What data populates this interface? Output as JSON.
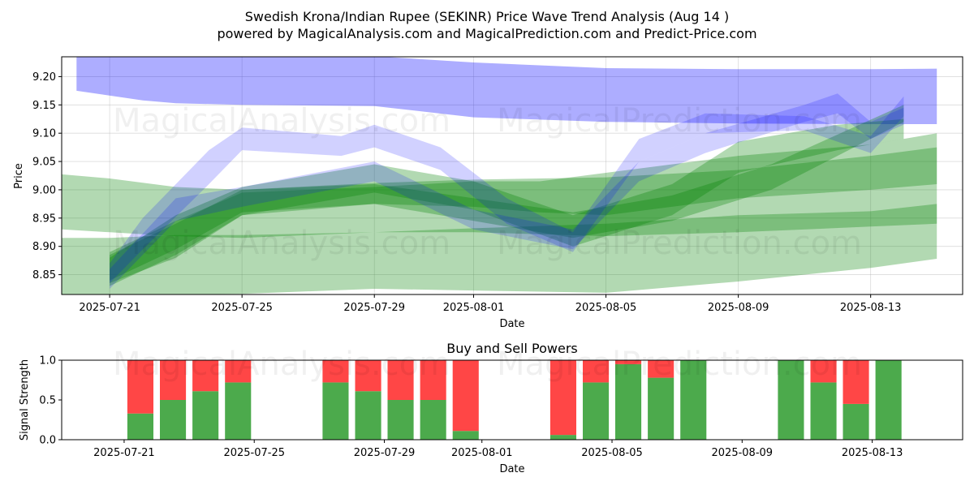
{
  "title_line1": "Swedish Krona/Indian Rupee (SEKINR) Price Wave Trend Analysis (Aug 14 )",
  "title_line2": "powered by MagicalAnalysis.com and MagicalPrediction.com and Predict-Price.com",
  "watermarks": [
    "MagicalAnalysis.com",
    "MagicalPrediction.com"
  ],
  "colors": {
    "blue_band": "#0000ff",
    "green_band": "#008000",
    "buy": "#4caa4c",
    "sell": "#ff4646",
    "grid": "#b0b0b0"
  },
  "chart_data": [
    {
      "type": "area",
      "title": "",
      "xlabel": "Date",
      "ylabel": "Price",
      "x_ticks": [
        "2025-07-21",
        "2025-07-25",
        "2025-07-29",
        "2025-08-01",
        "2025-08-05",
        "2025-08-09",
        "2025-08-13"
      ],
      "y_ticks": [
        "8.85",
        "8.90",
        "8.95",
        "9.00",
        "9.05",
        "9.10",
        "9.15",
        "9.20"
      ],
      "x_range": [
        "2025-07-19",
        "2025-08-15"
      ],
      "ylim": [
        8.815,
        9.235
      ],
      "grid": true,
      "bands": [
        {
          "color": "blue",
          "x": [
            "2025-07-20",
            "2025-07-22",
            "2025-07-23",
            "2025-07-25",
            "2025-07-29",
            "2025-08-01",
            "2025-08-05",
            "2025-08-09",
            "2025-08-13",
            "2025-08-15"
          ],
          "upper": [
            9.238,
            9.236,
            9.236,
            9.236,
            9.236,
            9.225,
            9.215,
            9.213,
            9.213,
            9.214
          ],
          "lower": [
            9.175,
            9.158,
            9.153,
            9.15,
            9.148,
            9.128,
            9.12,
            9.117,
            9.116,
            9.116
          ]
        },
        {
          "color": "green",
          "x": [
            "2025-07-19",
            "2025-07-21",
            "2025-07-23",
            "2025-07-25",
            "2025-07-29",
            "2025-08-01",
            "2025-08-05",
            "2025-08-09",
            "2025-08-13",
            "2025-08-15"
          ],
          "upper": [
            9.03,
            9.02,
            9.005,
            9.0,
            9.012,
            9.018,
            9.022,
            9.035,
            9.06,
            9.075
          ],
          "lower": [
            8.932,
            8.925,
            8.918,
            8.915,
            8.925,
            8.925,
            8.918,
            8.925,
            8.935,
            8.94
          ]
        },
        {
          "color": "green",
          "x": [
            "2025-07-19",
            "2025-07-21",
            "2025-07-23",
            "2025-07-25",
            "2025-07-29",
            "2025-08-01",
            "2025-08-05",
            "2025-08-09",
            "2025-08-13",
            "2025-08-15"
          ],
          "upper": [
            8.915,
            8.915,
            8.92,
            8.92,
            8.925,
            8.932,
            8.94,
            8.955,
            8.962,
            8.975
          ],
          "lower": [
            8.815,
            8.812,
            8.815,
            8.816,
            8.825,
            8.822,
            8.818,
            8.838,
            8.862,
            8.878
          ]
        },
        {
          "color": "green",
          "x": [
            "2025-07-21",
            "2025-07-23",
            "2025-07-25",
            "2025-07-29",
            "2025-08-01",
            "2025-08-03",
            "2025-08-05",
            "2025-08-09",
            "2025-08-13",
            "2025-08-15"
          ],
          "upper": [
            8.89,
            8.945,
            8.995,
            9.005,
            9.015,
            9.015,
            9.03,
            9.06,
            9.08,
            9.1
          ],
          "lower": [
            8.835,
            8.88,
            8.955,
            8.975,
            8.97,
            8.96,
            8.955,
            8.985,
            9.0,
            9.01
          ]
        },
        {
          "color": "green",
          "x": [
            "2025-07-21",
            "2025-07-23",
            "2025-07-25",
            "2025-07-29",
            "2025-08-01",
            "2025-08-04",
            "2025-08-07",
            "2025-08-09",
            "2025-08-12",
            "2025-08-14"
          ],
          "upper": [
            8.88,
            8.955,
            9.005,
            9.045,
            9.015,
            8.955,
            9.01,
            9.085,
            9.115,
            9.125
          ],
          "lower": [
            8.83,
            8.885,
            8.955,
            8.995,
            8.965,
            8.9,
            8.955,
            9.03,
            9.07,
            9.09
          ]
        },
        {
          "color": "green",
          "x": [
            "2025-07-21",
            "2025-07-23",
            "2025-07-25",
            "2025-07-29",
            "2025-08-01",
            "2025-08-04",
            "2025-08-07",
            "2025-08-10",
            "2025-08-14"
          ],
          "upper": [
            8.885,
            8.94,
            9.0,
            9.01,
            8.985,
            8.96,
            8.99,
            9.045,
            9.15
          ],
          "lower": [
            8.84,
            8.895,
            8.96,
            8.975,
            8.945,
            8.915,
            8.945,
            9.0,
            9.12
          ]
        },
        {
          "color": "blue",
          "x": [
            "2025-07-21",
            "2025-07-22",
            "2025-07-24",
            "2025-07-25",
            "2025-07-28",
            "2025-07-29",
            "2025-07-31",
            "2025-08-02",
            "2025-08-04",
            "2025-08-06",
            "2025-08-08",
            "2025-08-11",
            "2025-08-13",
            "2025-08-14"
          ],
          "upper": [
            8.87,
            8.95,
            9.07,
            9.11,
            9.095,
            9.115,
            9.075,
            8.985,
            8.925,
            9.09,
            9.135,
            9.13,
            9.095,
            9.165
          ],
          "lower": [
            8.835,
            8.895,
            9.01,
            9.07,
            9.06,
            9.075,
            9.035,
            8.94,
            8.89,
            9.05,
            9.1,
            9.105,
            9.065,
            9.13
          ]
        },
        {
          "color": "blue",
          "x": [
            "2025-07-21",
            "2025-07-23",
            "2025-07-25",
            "2025-07-29",
            "2025-08-01",
            "2025-08-04",
            "2025-08-06",
            "2025-08-08",
            "2025-08-11",
            "2025-08-12",
            "2025-08-13",
            "2025-08-14"
          ],
          "upper": [
            8.86,
            8.985,
            9.005,
            9.05,
            8.965,
            8.93,
            9.05,
            9.1,
            9.15,
            9.17,
            9.12,
            9.145
          ],
          "lower": [
            8.825,
            8.945,
            8.97,
            9.015,
            8.93,
            8.895,
            9.015,
            9.065,
            9.12,
            9.135,
            9.09,
            9.115
          ]
        }
      ]
    },
    {
      "type": "bar",
      "title": "Buy and Sell Powers",
      "xlabel": "Date",
      "ylabel": "Signal Strength",
      "x_ticks": [
        "2025-07-21",
        "2025-07-25",
        "2025-07-29",
        "2025-08-01",
        "2025-08-05",
        "2025-08-09",
        "2025-08-13"
      ],
      "y_ticks": [
        "0.0",
        "0.5",
        "1.0"
      ],
      "ylim": [
        0,
        1
      ],
      "x_range": [
        "2025-07-19",
        "2025-08-15"
      ],
      "x": [
        "2025-07-21",
        "2025-07-22",
        "2025-07-23",
        "2025-07-24",
        "2025-07-27",
        "2025-07-28",
        "2025-07-29",
        "2025-07-30",
        "2025-07-31",
        "2025-08-03",
        "2025-08-04",
        "2025-08-05",
        "2025-08-06",
        "2025-08-07",
        "2025-08-10",
        "2025-08-11",
        "2025-08-12",
        "2025-08-13"
      ],
      "series": [
        {
          "name": "Buy",
          "values": [
            0.33,
            0.5,
            0.61,
            0.72,
            0.72,
            0.61,
            0.5,
            0.5,
            0.11,
            0.06,
            0.72,
            0.95,
            0.78,
            1.0,
            1.0,
            0.72,
            0.45,
            1.0
          ]
        },
        {
          "name": "Sell",
          "values": [
            0.67,
            0.5,
            0.39,
            0.28,
            0.28,
            0.39,
            0.5,
            0.5,
            0.89,
            0.94,
            0.28,
            0.05,
            0.22,
            0.0,
            0.0,
            0.28,
            0.55,
            0.0
          ]
        }
      ]
    }
  ]
}
